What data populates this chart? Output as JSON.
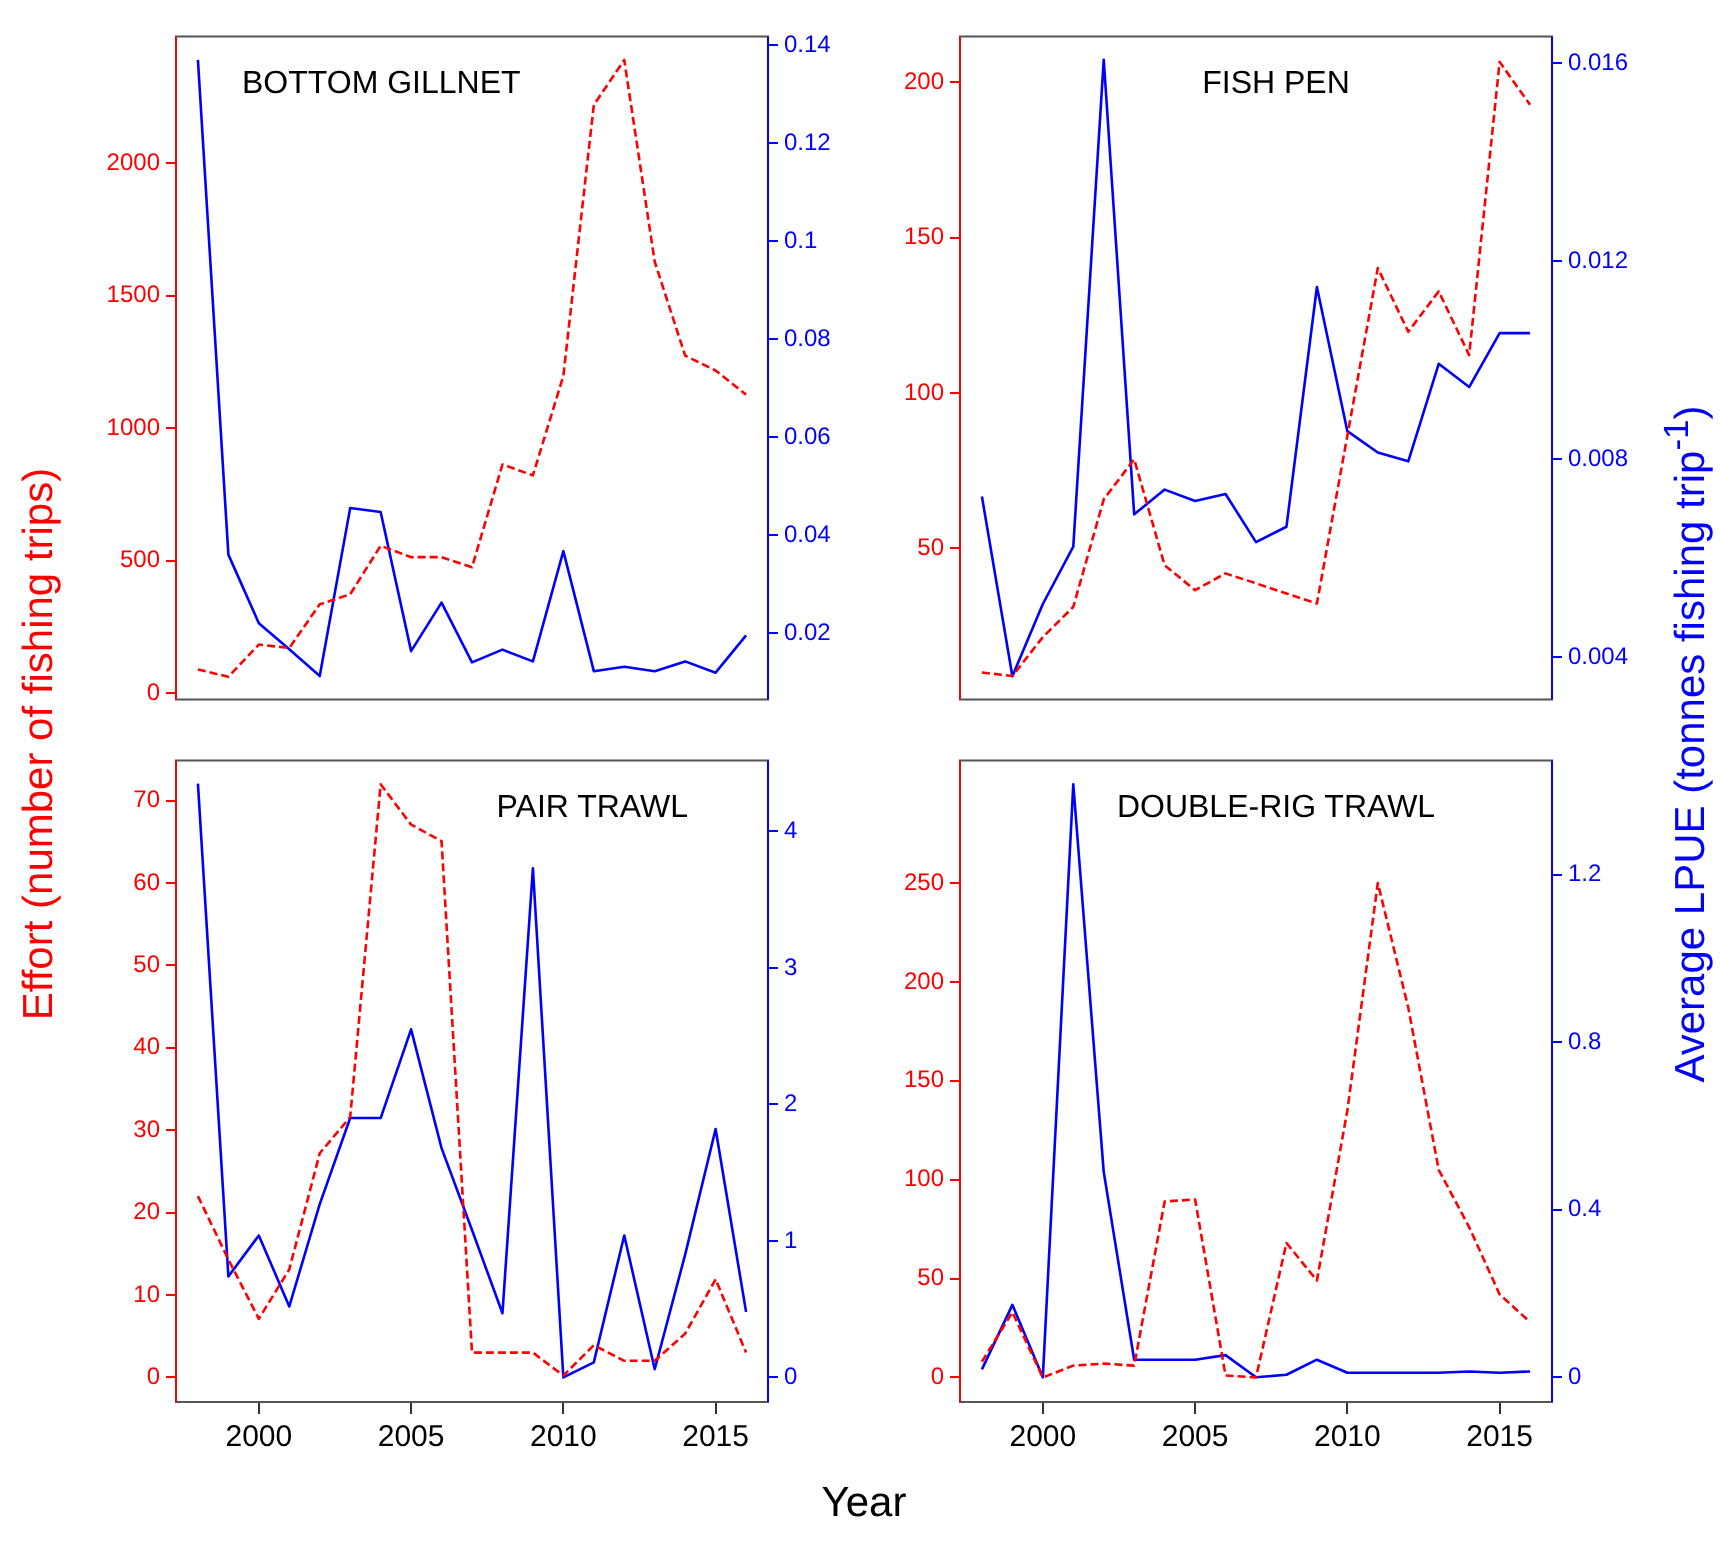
{
  "chart_data": [
    {
      "type": "line",
      "title": "BOTTOM GILLNET",
      "ylabel": "Effort (number of fishing trips)",
      "x": [
        1998,
        1999,
        2000,
        2001,
        2002,
        2003,
        2004,
        2005,
        2006,
        2007,
        2008,
        2009,
        2010,
        2011,
        2012,
        2013,
        2014,
        2015,
        2016
      ],
      "xlim": [
        1997.28,
        2016.72
      ],
      "ylim": [
        -25,
        2480
      ],
      "yticks": [
        0,
        500,
        1000,
        1500,
        2000
      ],
      "y2lim": [
        0.0064,
        0.1418
      ],
      "y2ticks": [
        0.02,
        0.04,
        0.06,
        0.08,
        0.1,
        0.12,
        0.14
      ],
      "tick_labels": "y",
      "series": [
        {
          "color": "#ff0000",
          "line_style": "dashed",
          "values": [
            89,
            61,
            183,
            170,
            335,
            373,
            556,
            513,
            513,
            475,
            863,
            822,
            1198,
            2221,
            2391,
            1629,
            1274,
            1218,
            1127
          ]
        },
        {
          "color": "#0000ff",
          "axis": "y2",
          "values": [
            0.137,
            0.036,
            0.022,
            0.0167,
            0.0112,
            0.0455,
            0.0447,
            0.0163,
            0.0262,
            0.014,
            0.0166,
            0.0142,
            0.0367,
            0.0122,
            0.0131,
            0.0122,
            0.0142,
            0.0119,
            0.0195
          ]
        }
      ]
    },
    {
      "type": "line",
      "title": "FISH PEN",
      "y2label": "Average LPUE (tonnes fishing trip$^{-1}$)",
      "x": [
        1998,
        1999,
        2000,
        2001,
        2002,
        2003,
        2004,
        2005,
        2006,
        2007,
        2008,
        2009,
        2010,
        2011,
        2012,
        2013,
        2014,
        2015,
        2016
      ],
      "xlim": [
        1997.28,
        2016.72
      ],
      "ylim": [
        1.4,
        214.7
      ],
      "yticks": [
        50,
        100,
        150,
        200
      ],
      "y2lim": [
        0.00315,
        0.01654
      ],
      "y2ticks": [
        0.004,
        0.008,
        0.012,
        0.016
      ],
      "tick_labels": "y",
      "series": [
        {
          "color": "#ff0000",
          "line_style": "dashed",
          "values": [
            10.1,
            9,
            21.5,
            31.2,
            65.8,
            78.7,
            44.6,
            36.6,
            42,
            38.8,
            35.5,
            32.3,
            86.3,
            140.2,
            119.7,
            132.7,
            112.2,
            206.5,
            192.7
          ]
        },
        {
          "color": "#0000ff",
          "axis": "y2",
          "values": [
            0.00725,
            0.00362,
            0.00508,
            0.00624,
            0.01607,
            0.00689,
            0.00739,
            0.00716,
            0.0073,
            0.00633,
            0.00664,
            0.01148,
            0.00857,
            0.00814,
            0.00796,
            0.00993,
            0.00946,
            0.01055,
            0.01055
          ]
        }
      ]
    },
    {
      "type": "line",
      "title": "PAIR TRAWL",
      "xlabel": "Year",
      "x": [
        1998,
        1999,
        2000,
        2001,
        2002,
        2003,
        2004,
        2005,
        2006,
        2007,
        2008,
        2009,
        2010,
        2011,
        2012,
        2013,
        2014,
        2015,
        2016
      ],
      "xlim": [
        1997.28,
        2016.72
      ],
      "xticks": [
        2000,
        2005,
        2010,
        2015
      ],
      "ylim": [
        -3,
        74.9
      ],
      "yticks": [
        0,
        10,
        20,
        30,
        40,
        50,
        60,
        70
      ],
      "y2lim": [
        -0.18,
        4.52
      ],
      "y2ticks": [
        0,
        1,
        2,
        3,
        4
      ],
      "series": [
        {
          "color": "#ff0000",
          "line_style": "dashed",
          "values": [
            22,
            14.3,
            7.1,
            13.1,
            27.2,
            31.6,
            72,
            67.1,
            65.1,
            3,
            3,
            3,
            0.2,
            3.9,
            2,
            2,
            5.3,
            11.9,
            3
          ]
        },
        {
          "color": "#0000ff",
          "axis": "y2",
          "values": [
            4.35,
            0.74,
            1.04,
            0.52,
            1.27,
            1.9,
            1.9,
            2.55,
            1.68,
            1.08,
            0.47,
            3.73,
            0,
            0.11,
            1.04,
            0.06,
            0.9,
            1.82,
            0.48
          ]
        }
      ]
    },
    {
      "type": "line",
      "title": "DOUBLE-RIG TRAWL",
      "x": [
        1998,
        1999,
        2000,
        2001,
        2002,
        2003,
        2004,
        2005,
        2006,
        2007,
        2008,
        2009,
        2010,
        2011,
        2012,
        2013,
        2014,
        2015,
        2016
      ],
      "xlim": [
        1997.28,
        2016.72
      ],
      "xticks": [
        2000,
        2005,
        2010,
        2015
      ],
      "ylim": [
        -12.4,
        312
      ],
      "yticks": [
        0,
        50,
        100,
        150,
        200,
        250
      ],
      "y2lim": [
        -0.059,
        1.473
      ],
      "y2ticks": [
        0,
        0.4,
        0.8,
        1.2
      ],
      "series": [
        {
          "color": "#ff0000",
          "line_style": "dashed",
          "values": [
            8,
            33,
            0,
            6,
            7,
            6,
            89,
            90,
            1,
            0,
            68,
            49,
            135,
            250,
            187,
            105,
            76,
            42,
            28
          ]
        },
        {
          "color": "#0000ff",
          "axis": "y2",
          "values": [
            0.019,
            0.173,
            0,
            1.416,
            0.49,
            0.042,
            0.042,
            0.042,
            0.053,
            0,
            0.006,
            0.042,
            0.011,
            0.011,
            0.011,
            0.011,
            0.014,
            0.011,
            0.014
          ]
        }
      ]
    }
  ]
}
